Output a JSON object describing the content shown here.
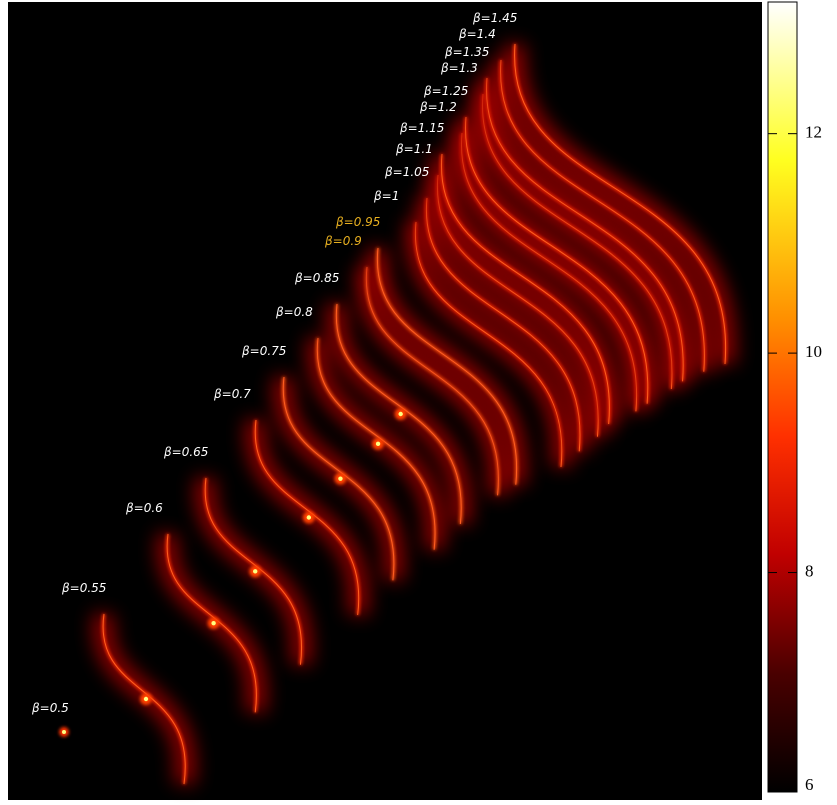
{
  "chart_data": {
    "type": "density",
    "labels": [
      {
        "text": "β=0.5",
        "color": "#ffffff"
      },
      {
        "text": "β=0.55",
        "color": "#ffffff"
      },
      {
        "text": "β=0.6",
        "color": "#ffffff"
      },
      {
        "text": "β=0.65",
        "color": "#ffffff"
      },
      {
        "text": "β=0.7",
        "color": "#ffffff"
      },
      {
        "text": "β=0.75",
        "color": "#ffffff"
      },
      {
        "text": "β=0.8",
        "color": "#ffffff"
      },
      {
        "text": "β=0.85",
        "color": "#ffffff"
      },
      {
        "text": "β=0.9",
        "color": "#e8b020"
      },
      {
        "text": "β=0.95",
        "color": "#e8b020"
      },
      {
        "text": "β=1",
        "color": "#ffffff"
      },
      {
        "text": "β=1.05",
        "color": "#ffffff"
      },
      {
        "text": "β=1.1",
        "color": "#ffffff"
      },
      {
        "text": "β=1.15",
        "color": "#ffffff"
      },
      {
        "text": "β=1.2",
        "color": "#ffffff"
      },
      {
        "text": "β=1.25",
        "color": "#ffffff"
      },
      {
        "text": "β=1.3",
        "color": "#ffffff"
      },
      {
        "text": "β=1.35",
        "color": "#ffffff"
      },
      {
        "text": "β=1.4",
        "color": "#ffffff"
      },
      {
        "text": "β=1.45",
        "color": "#ffffff"
      }
    ],
    "colorbar": {
      "clim": [
        6,
        13.2
      ],
      "ticks": [
        6,
        8,
        10,
        12
      ]
    }
  }
}
